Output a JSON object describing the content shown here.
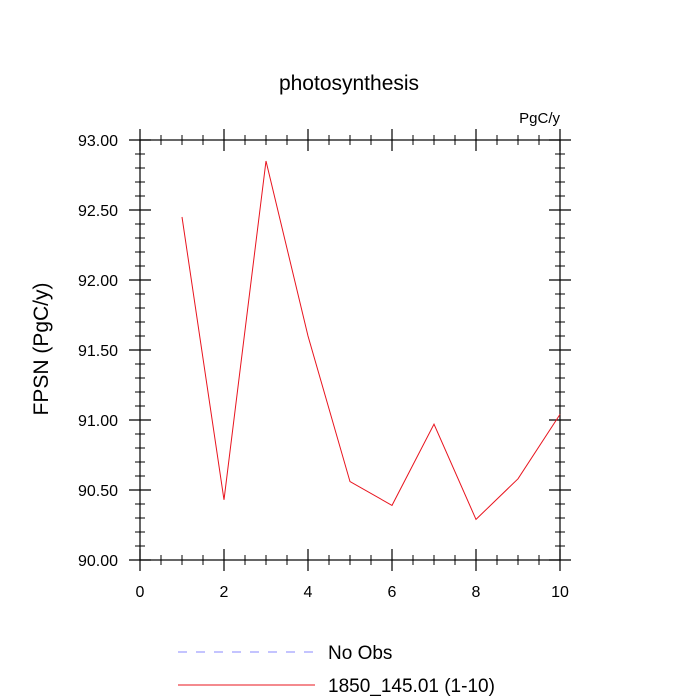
{
  "chart_data": {
    "type": "line",
    "title": "photosynthesis",
    "units_label": "PgC/y",
    "ylabel": "FPSN  (PgC/y)",
    "xlabel": "",
    "xlim": [
      0,
      10
    ],
    "ylim": [
      90.0,
      93.0
    ],
    "x_ticks": [
      0,
      2,
      4,
      6,
      8,
      10
    ],
    "x_tick_labels": [
      "0",
      "2",
      "4",
      "6",
      "8",
      "10"
    ],
    "y_ticks": [
      90.0,
      90.5,
      91.0,
      91.5,
      92.0,
      92.5,
      93.0
    ],
    "y_tick_labels": [
      "90.00",
      "90.50",
      "91.00",
      "91.50",
      "92.00",
      "92.50",
      "93.00"
    ],
    "grid": false,
    "legend_position": "bottom",
    "series": [
      {
        "name": "1850_145.01 (1-10)",
        "color": "#e8141e",
        "style": "solid",
        "x": [
          1,
          2,
          3,
          4,
          5,
          6,
          7,
          8,
          9,
          10
        ],
        "y": [
          92.45,
          90.43,
          92.85,
          91.6,
          90.56,
          90.39,
          90.97,
          90.29,
          90.58,
          91.04
        ]
      }
    ],
    "legend": [
      {
        "label": "No Obs",
        "color": "#8a8aff",
        "style": "dashed"
      },
      {
        "label": "1850_145.01 (1-10)",
        "color": "#e8141e",
        "style": "solid"
      }
    ]
  }
}
